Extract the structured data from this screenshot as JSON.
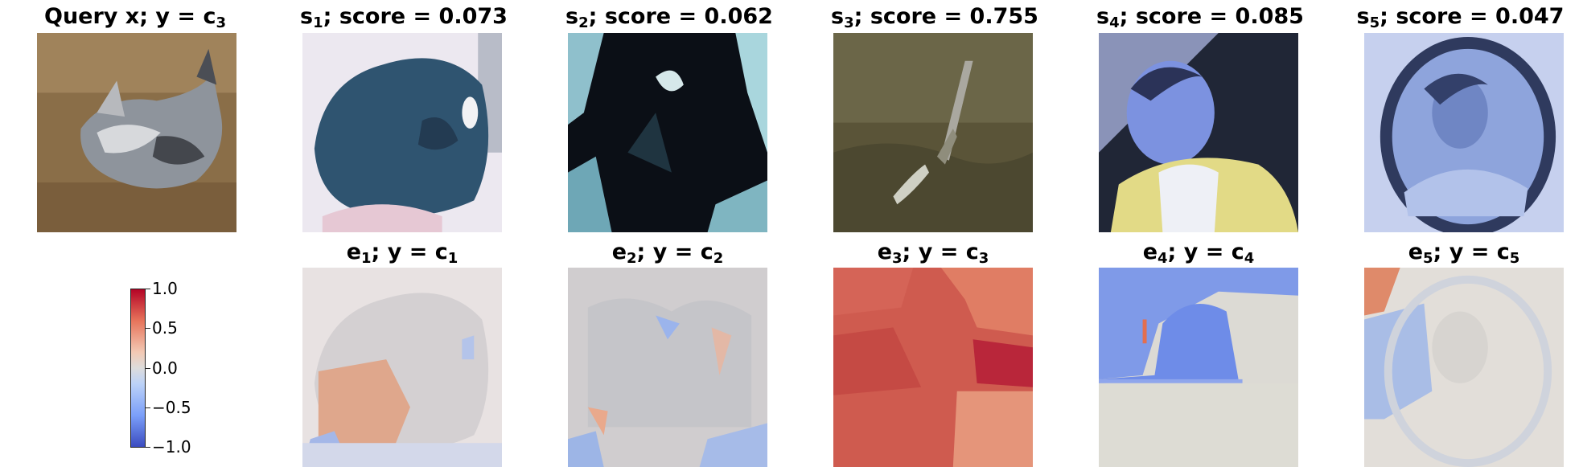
{
  "top_row": [
    {
      "name": "Query x",
      "sep": "; y = ",
      "label": "c",
      "label_sub": "3",
      "score": "",
      "kind": "query",
      "bg": "#8a6e48"
    },
    {
      "name": "s",
      "name_sub": "1",
      "sep": "; ",
      "score_label": "score = ",
      "score": "0.073",
      "kind": "sample",
      "bg": "#e9e6ef"
    },
    {
      "name": "s",
      "name_sub": "2",
      "sep": "; ",
      "score_label": "score = ",
      "score": "0.062",
      "kind": "sample",
      "bg": "#1b2a3a"
    },
    {
      "name": "s",
      "name_sub": "3",
      "sep": "; ",
      "score_label": "score = ",
      "score": "0.755",
      "kind": "sample",
      "bg": "#5a5438"
    },
    {
      "name": "s",
      "name_sub": "4",
      "sep": "; ",
      "score_label": "score = ",
      "score": "0.085",
      "kind": "sample",
      "bg": "#5a68b0"
    },
    {
      "name": "s",
      "name_sub": "5",
      "sep": "; ",
      "score_label": "score = ",
      "score": "0.047",
      "kind": "sample",
      "bg": "#8fa6de"
    }
  ],
  "bottom_row": [
    {
      "name": "e",
      "name_sub": "1",
      "sep": "; y = ",
      "label": "c",
      "label_sub": "1",
      "dominant": "#d9d6d8",
      "accent": "#df9a7a"
    },
    {
      "name": "e",
      "name_sub": "2",
      "sep": "; y = ",
      "label": "c",
      "label_sub": "2",
      "dominant": "#c8c8cc",
      "accent": "#9db5e6"
    },
    {
      "name": "e",
      "name_sub": "3",
      "sep": "; y = ",
      "label": "c",
      "label_sub": "3",
      "dominant": "#cf5b4f",
      "accent": "#b9263a"
    },
    {
      "name": "e",
      "name_sub": "4",
      "sep": "; y = ",
      "label": "c",
      "label_sub": "4",
      "dominant": "#dcdad4",
      "accent": "#7f9ae8"
    },
    {
      "name": "e",
      "name_sub": "5",
      "sep": "; y = ",
      "label": "c",
      "label_sub": "5",
      "dominant": "#e2ded9",
      "accent": "#a9bde6"
    }
  ],
  "colorbar": {
    "ticks": [
      "1.0",
      "0.5",
      "0.0",
      "−0.5",
      "−1.0"
    ],
    "colormap": "coolwarm",
    "range": [
      -1.0,
      1.0
    ]
  }
}
